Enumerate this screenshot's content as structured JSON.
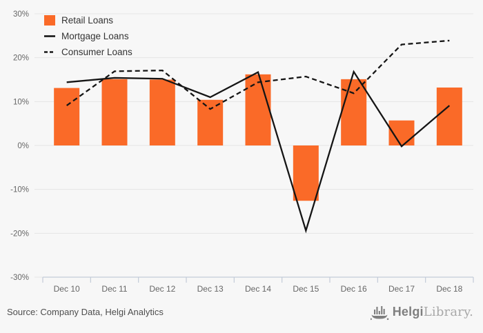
{
  "chart_data": {
    "type": "bar",
    "title": "",
    "categories": [
      "Dec 10",
      "Dec 11",
      "Dec 12",
      "Dec 13",
      "Dec 14",
      "Dec 15",
      "Dec 16",
      "Dec 17",
      "Dec 18"
    ],
    "series": [
      {
        "name": "Retail Loans",
        "kind": "bar",
        "color": "#fa6a28",
        "values": [
          13.1,
          15.1,
          15.0,
          10.4,
          16.2,
          -12.6,
          15.1,
          5.7,
          13.2
        ]
      },
      {
        "name": "Mortgage Loans",
        "kind": "line",
        "style": "solid",
        "color": "#151515",
        "values": [
          14.4,
          15.4,
          15.2,
          11.0,
          16.7,
          -19.4,
          16.8,
          -0.2,
          9.1
        ]
      },
      {
        "name": "Consumer Loans",
        "kind": "line",
        "style": "dashed",
        "color": "#151515",
        "values": [
          9.1,
          16.9,
          17.1,
          8.3,
          14.4,
          15.7,
          11.9,
          23.0,
          23.9
        ]
      }
    ],
    "ylim": [
      -30,
      30
    ],
    "ytick_step": 10,
    "ytick_labels": [
      "30%",
      "20%",
      "10%",
      "0%",
      "-10%",
      "-20%",
      "-30%"
    ],
    "grid": true,
    "legend_position": "top-left",
    "xlabel": "",
    "ylabel": ""
  },
  "colors": {
    "background": "#f7f7f7",
    "bar_orange": "#fa6a28",
    "line_black": "#151515",
    "gridline": "#e5e5e5",
    "axis_line": "#c3cbd8",
    "tick_label": "#666666",
    "legend_text": "#333333",
    "source_text": "#4d4d4d",
    "brand_bold": "#7f7f7f",
    "brand_light": "#a8a8a8"
  },
  "footer": {
    "source": "Source: Company Data, Helgi Analytics",
    "brand_bold": "Helgi",
    "brand_light": "Library.",
    "logo_icon": "viking-ship-bar-chart-icon"
  }
}
